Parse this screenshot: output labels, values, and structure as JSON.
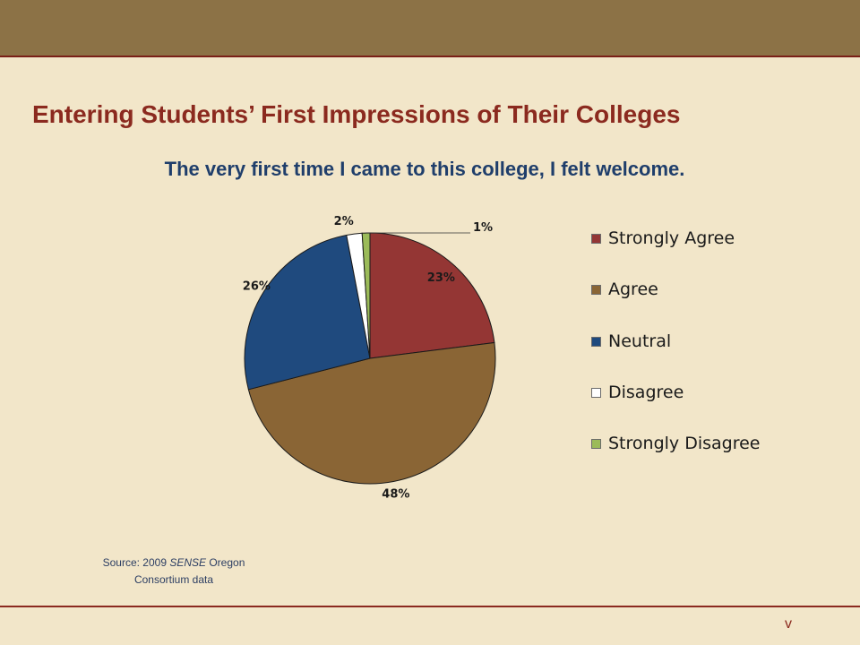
{
  "slide": {
    "title": "Entering Students’ First Impressions of Their Colleges",
    "source_prefix": "Source: 2009 ",
    "source_italic": "SENSE",
    "source_suffix": " Oregon",
    "source_line2": "Consortium data",
    "slide_number": "v"
  },
  "colors": {
    "header_bar": "#8c7246",
    "background": "#f2e6c9",
    "title": "#8b2a1f",
    "subtitle": "#1f3e6b"
  },
  "chart_data": {
    "type": "pie",
    "title": "The very first time I came to this college, I felt welcome.",
    "categories": [
      "Strongly Agree",
      "Agree",
      "Neutral",
      "Disagree",
      "Strongly Disagree"
    ],
    "values": [
      23,
      48,
      26,
      2,
      1
    ],
    "data_labels": [
      "23%",
      "48%",
      "26%",
      "2%",
      "1%"
    ],
    "colors": [
      "#943634",
      "#8a6535",
      "#1f4a7e",
      "#ffffff",
      "#9bbb59"
    ],
    "legend_position": "right",
    "start_angle": "12 o'clock",
    "direction": "clockwise"
  }
}
